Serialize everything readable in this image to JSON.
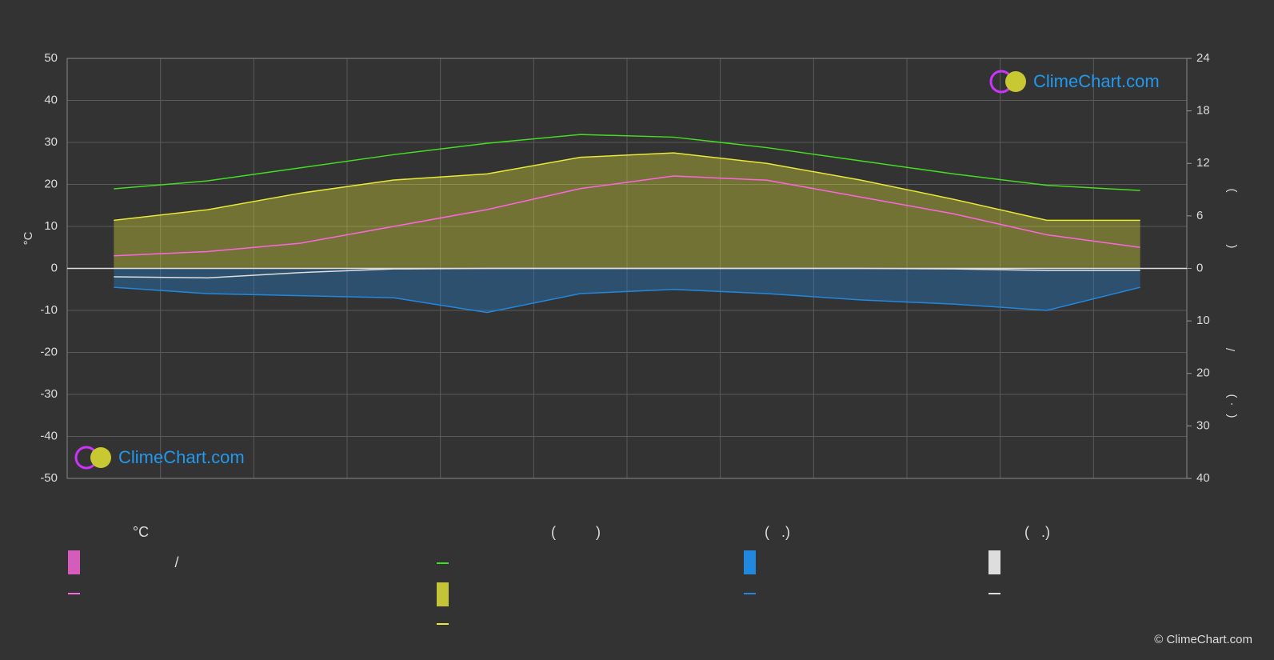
{
  "chart_data": {
    "type": "line",
    "categories": [
      null,
      null,
      null,
      null,
      null,
      null,
      null,
      null,
      null,
      null,
      null,
      null
    ],
    "ylim": [
      -50,
      50
    ],
    "yticks": [
      -50,
      -40,
      -30,
      -20,
      -10,
      0,
      10,
      20,
      30,
      40,
      50
    ],
    "y2lim": [
      0,
      24
    ],
    "y2ticks": [
      0,
      6,
      12,
      18,
      24
    ],
    "y3lim": [
      0,
      40
    ],
    "y3ticks": [
      10,
      20,
      30,
      40
    ],
    "y_label": "°C",
    "grid": true,
    "series": [
      {
        "color": "#44dd22",
        "axis": "y2",
        "values": [
          9.1,
          10.0,
          11.5,
          13.0,
          14.3,
          15.3,
          15.0,
          13.8,
          12.3,
          10.8,
          9.5,
          8.9
        ]
      },
      {
        "color": "#e8e83a",
        "axis": "y2",
        "area": true,
        "values": [
          5.5,
          6.7,
          8.6,
          10.1,
          10.8,
          12.7,
          13.2,
          12.0,
          10.1,
          7.9,
          5.5,
          5.5
        ]
      },
      {
        "color": "#ff66dd",
        "values": [
          3,
          4,
          6,
          10,
          14,
          19,
          22,
          21,
          17,
          13,
          8,
          5
        ]
      },
      {
        "color": "#2288dd",
        "axis": "y3",
        "area": true,
        "values": [
          3.6,
          4.8,
          5.2,
          5.6,
          8.4,
          4.8,
          4.0,
          4.8,
          6.0,
          6.8,
          8.0,
          3.6
        ]
      },
      {
        "color": "#dddddd",
        "axis": "y3",
        "values": [
          1.6,
          1.8,
          0.8,
          0.1,
          0,
          0,
          0,
          0,
          0,
          0.1,
          0.4,
          0.4
        ]
      }
    ],
    "legend_headers": [
      "°C",
      "(          )",
      "(   .)",
      "(   .)"
    ],
    "legend_note": "/",
    "right_axis_marks": [
      ")",
      "(",
      "/",
      ")",
      "(",
      "·"
    ],
    "watermark": "ClimeChart.com",
    "copyright": "© ClimeChart.com"
  }
}
